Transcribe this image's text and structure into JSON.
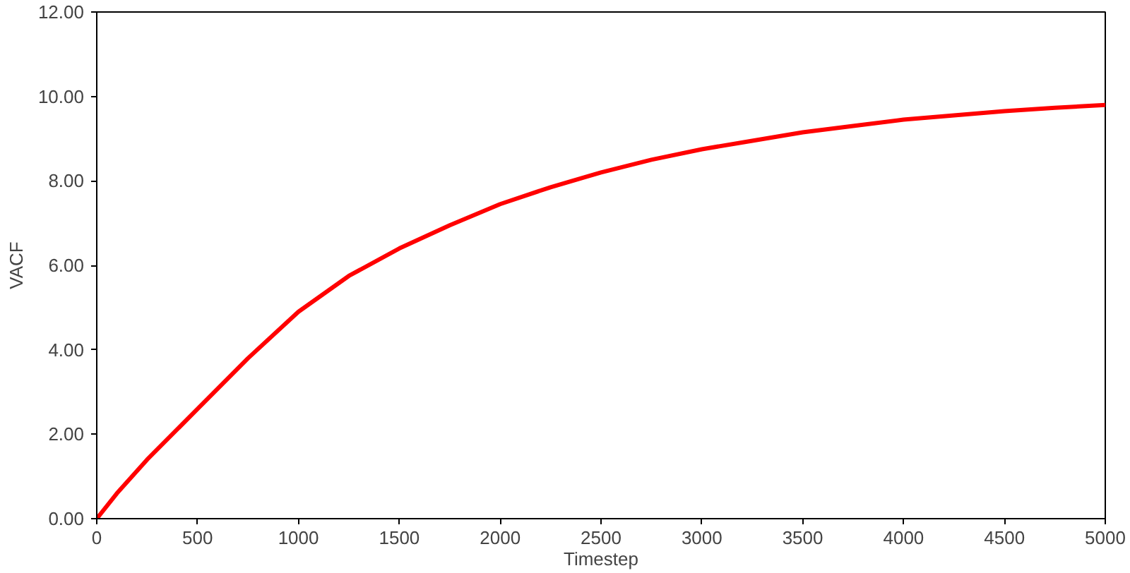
{
  "chart_data": {
    "type": "line",
    "xlabel": "Timestep",
    "ylabel": "VACF",
    "x": [
      0,
      100,
      250,
      500,
      750,
      1000,
      1250,
      1500,
      1750,
      2000,
      2250,
      2500,
      2750,
      3000,
      3250,
      3500,
      3750,
      4000,
      4250,
      4500,
      4750,
      5000
    ],
    "series": [
      {
        "color": "#ff0000",
        "values": [
          0,
          0.6,
          1.4,
          2.6,
          3.8,
          4.9,
          5.75,
          6.4,
          6.95,
          7.45,
          7.85,
          8.2,
          8.5,
          8.75,
          8.95,
          9.15,
          9.3,
          9.45,
          9.55,
          9.65,
          9.73,
          9.8
        ]
      }
    ],
    "xlim": [
      0,
      5000
    ],
    "xticks": [
      0,
      500,
      1000,
      1500,
      2000,
      2500,
      3000,
      3500,
      4000,
      4500,
      5000
    ],
    "ylim": [
      0,
      12
    ],
    "yticks": [
      {
        "value": 0,
        "label": "0.00"
      },
      {
        "value": 2,
        "label": "2.00"
      },
      {
        "value": 4,
        "label": "4.00"
      },
      {
        "value": 6,
        "label": "6.00"
      },
      {
        "value": 8,
        "label": "8.00"
      },
      {
        "value": 10,
        "label": "10.00"
      },
      {
        "value": 12,
        "label": "12.00"
      }
    ],
    "grid": false,
    "marker": "none",
    "line_style": "solid"
  }
}
